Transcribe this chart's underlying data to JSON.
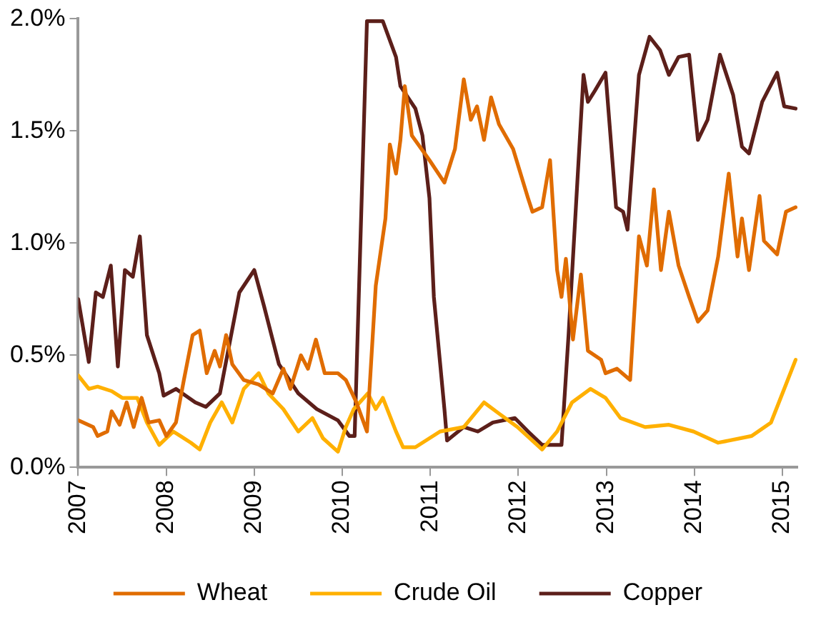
{
  "chart_data": {
    "type": "line",
    "xlim": [
      2007,
      2015.17
    ],
    "xticks": [
      2007,
      2008,
      2009,
      2010,
      2011,
      2012,
      2013,
      2014,
      2015
    ],
    "ylim": [
      0,
      2
    ],
    "yticks": [
      {
        "value": 0,
        "label": "0.0%"
      },
      {
        "value": 0.5,
        "label": "0.5%"
      },
      {
        "value": 1,
        "label": "1.0%"
      },
      {
        "value": 1.5,
        "label": "1.5%"
      },
      {
        "value": 2,
        "label": "2.0%"
      }
    ],
    "grid": false,
    "legend": "bottom",
    "marker": "none",
    "line_style": "solid",
    "series": [
      {
        "name": "Wheat",
        "color": "#e06c00",
        "x": [
          2007,
          2007.17,
          2007.22,
          2007.33,
          2007.38,
          2007.47,
          2007.55,
          2007.63,
          2007.72,
          2007.8,
          2007.92,
          2008,
          2008.11,
          2008.2,
          2008.3,
          2008.38,
          2008.46,
          2008.55,
          2008.61,
          2008.68,
          2008.75,
          2008.88,
          2009.05,
          2009.21,
          2009.33,
          2009.41,
          2009.53,
          2009.61,
          2009.7,
          2009.8,
          2009.95,
          2010.04,
          2010.16,
          2010.28,
          2010.38,
          2010.49,
          2010.54,
          2010.61,
          2010.66,
          2010.71,
          2010.79,
          2010.99,
          2011.16,
          2011.28,
          2011.38,
          2011.46,
          2011.53,
          2011.61,
          2011.69,
          2011.78,
          2011.94,
          2012.11,
          2012.16,
          2012.27,
          2012.36,
          2012.44,
          2012.49,
          2012.54,
          2012.62,
          2012.71,
          2012.79,
          2012.94,
          2012.99,
          2013.12,
          2013.27,
          2013.37,
          2013.46,
          2013.54,
          2013.62,
          2013.71,
          2013.82,
          2013.94,
          2014.04,
          2014.15,
          2014.27,
          2014.39,
          2014.49,
          2014.54,
          2014.62,
          2014.74,
          2014.79,
          2014.94,
          2015.04,
          2015.15
        ],
        "values": [
          0.21,
          0.18,
          0.14,
          0.16,
          0.25,
          0.19,
          0.29,
          0.18,
          0.31,
          0.2,
          0.21,
          0.14,
          0.2,
          0.39,
          0.59,
          0.61,
          0.42,
          0.52,
          0.45,
          0.59,
          0.46,
          0.39,
          0.37,
          0.33,
          0.44,
          0.35,
          0.5,
          0.44,
          0.57,
          0.42,
          0.42,
          0.39,
          0.29,
          0.16,
          0.81,
          1.11,
          1.44,
          1.31,
          1.46,
          1.7,
          1.48,
          1.37,
          1.27,
          1.42,
          1.73,
          1.55,
          1.61,
          1.46,
          1.65,
          1.53,
          1.42,
          1.2,
          1.14,
          1.16,
          1.37,
          0.88,
          0.76,
          0.93,
          0.57,
          0.86,
          0.52,
          0.48,
          0.42,
          0.44,
          0.39,
          1.03,
          0.9,
          1.24,
          0.88,
          1.14,
          0.9,
          0.76,
          0.65,
          0.7,
          0.94,
          1.31,
          0.94,
          1.11,
          0.88,
          1.21,
          1.01,
          0.95,
          1.14,
          1.16
        ]
      },
      {
        "name": "Crude Oil",
        "color": "#ffb000",
        "x": [
          2007,
          2007.12,
          2007.22,
          2007.38,
          2007.5,
          2007.67,
          2007.78,
          2007.92,
          2008.08,
          2008.28,
          2008.38,
          2008.5,
          2008.63,
          2008.75,
          2008.88,
          2009.05,
          2009.16,
          2009.33,
          2009.5,
          2009.66,
          2009.78,
          2009.95,
          2010.04,
          2010.13,
          2010.29,
          2010.38,
          2010.46,
          2010.61,
          2010.69,
          2010.83,
          2011.11,
          2011.38,
          2011.61,
          2011.78,
          2011.99,
          2012.27,
          2012.44,
          2012.61,
          2012.82,
          2012.99,
          2013.16,
          2013.44,
          2013.71,
          2013.99,
          2014.27,
          2014.65,
          2014.87,
          2015.02,
          2015.15
        ],
        "values": [
          0.41,
          0.35,
          0.36,
          0.34,
          0.31,
          0.31,
          0.2,
          0.1,
          0.16,
          0.11,
          0.08,
          0.2,
          0.29,
          0.2,
          0.35,
          0.42,
          0.33,
          0.26,
          0.16,
          0.22,
          0.13,
          0.07,
          0.18,
          0.26,
          0.33,
          0.26,
          0.31,
          0.16,
          0.09,
          0.09,
          0.16,
          0.18,
          0.29,
          0.24,
          0.18,
          0.08,
          0.16,
          0.29,
          0.35,
          0.31,
          0.22,
          0.18,
          0.19,
          0.16,
          0.11,
          0.14,
          0.2,
          0.35,
          0.48
        ]
      },
      {
        "name": "Copper",
        "color": "#5c1f1a",
        "x": [
          2007,
          2007.12,
          2007.2,
          2007.28,
          2007.37,
          2007.45,
          2007.53,
          2007.62,
          2007.7,
          2007.78,
          2007.92,
          2007.97,
          2008.11,
          2008.33,
          2008.45,
          2008.61,
          2008.83,
          2009,
          2009.11,
          2009.28,
          2009.5,
          2009.71,
          2009.95,
          2010.08,
          2010.14,
          2010.28,
          2010.46,
          2010.61,
          2010.66,
          2010.83,
          2010.91,
          2010.99,
          2011.04,
          2011.16,
          2011.19,
          2011.38,
          2011.54,
          2011.71,
          2011.96,
          2012.11,
          2012.27,
          2012.49,
          2012.57,
          2012.74,
          2012.79,
          2012.87,
          2012.99,
          2013.11,
          2013.19,
          2013.24,
          2013.37,
          2013.49,
          2013.61,
          2013.71,
          2013.82,
          2013.94,
          2014.04,
          2014.15,
          2014.29,
          2014.44,
          2014.54,
          2014.62,
          2014.77,
          2014.94,
          2015.02,
          2015.15
        ],
        "values": [
          0.75,
          0.47,
          0.78,
          0.76,
          0.9,
          0.45,
          0.88,
          0.85,
          1.03,
          0.59,
          0.42,
          0.32,
          0.35,
          0.29,
          0.27,
          0.33,
          0.78,
          0.88,
          0.72,
          0.46,
          0.33,
          0.26,
          0.21,
          0.14,
          0.14,
          1.99,
          1.99,
          1.83,
          1.7,
          1.6,
          1.48,
          1.2,
          0.76,
          0.26,
          0.12,
          0.18,
          0.16,
          0.2,
          0.22,
          0.16,
          0.1,
          0.1,
          0.59,
          1.75,
          1.63,
          1.68,
          1.76,
          1.16,
          1.14,
          1.06,
          1.75,
          1.92,
          1.86,
          1.75,
          1.83,
          1.84,
          1.46,
          1.55,
          1.84,
          1.66,
          1.43,
          1.4,
          1.63,
          1.76,
          1.61,
          1.6
        ]
      }
    ]
  }
}
